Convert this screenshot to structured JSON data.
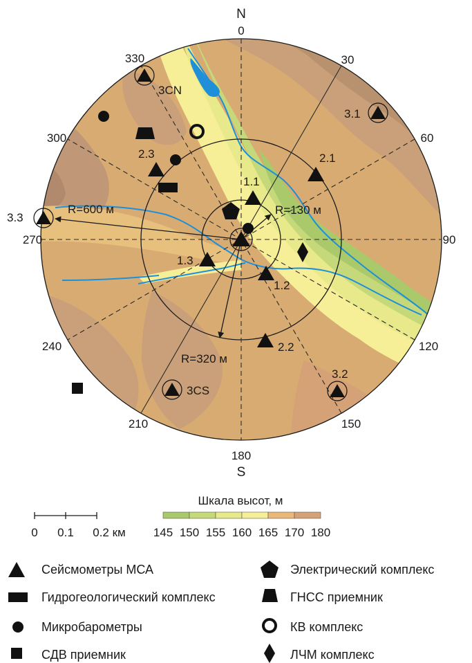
{
  "map": {
    "north_letter": "N",
    "south_letter": "S",
    "bearings": [
      "0",
      "30",
      "60",
      "90",
      "120",
      "150",
      "180",
      "210",
      "240",
      "270",
      "300",
      "330"
    ],
    "radius_labels": [
      "R=600 м",
      "R=320 м",
      "R=130 м"
    ],
    "stations": [
      "3.1",
      "3.2",
      "3.3",
      "3CN",
      "3CS",
      "2.1",
      "2.2",
      "2.3",
      "1.1",
      "1.2",
      "1.3"
    ]
  },
  "scalebar": {
    "ticks": [
      "0",
      "0.1",
      "0.2 км"
    ]
  },
  "elevation_scale": {
    "title": "Шкала высот, м",
    "ticks": [
      "145",
      "150",
      "155",
      "160",
      "165",
      "170",
      "180"
    ],
    "colors": [
      "#a9c96b",
      "#c6d97a",
      "#e8e98a",
      "#f6ef98",
      "#eab97a",
      "#d5a277",
      "#c09a78",
      "#b18a6e"
    ]
  },
  "legend": [
    {
      "icon": "triangle-icon",
      "label": "Сейсмометры МСА"
    },
    {
      "icon": "pentagon-icon",
      "label": "Электрический комплекс"
    },
    {
      "icon": "rectangle-icon",
      "label": "Гидрогеологический комплекс"
    },
    {
      "icon": "trapezoid-icon",
      "label": "ГНСС приемник"
    },
    {
      "icon": "circle-icon",
      "label": "Микробарометры"
    },
    {
      "icon": "ring-icon",
      "label": "КВ комплекс"
    },
    {
      "icon": "square-icon",
      "label": "СДВ приемник"
    },
    {
      "icon": "diamond-icon",
      "label": "ЛЧМ комплекс"
    }
  ]
}
